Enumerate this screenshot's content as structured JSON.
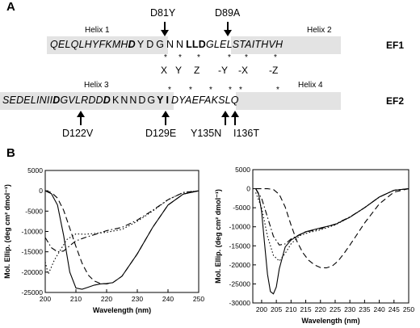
{
  "panelA": {
    "label": "A",
    "mutations_top": [
      "D81Y",
      "D89A"
    ],
    "helix1": "Helix 1",
    "helix2": "Helix 2",
    "helix3": "Helix 3",
    "helix4": "Helix 4",
    "seq1_a": "QELQLHYFKMH",
    "seq1_D81": "D",
    "seq1_b": "YDGNN",
    "seq1_LLD": "LLD",
    "seq1_c": "GLELSTAITHVH",
    "ef1": "EF1",
    "coords": [
      "X",
      "Y",
      "Z",
      "-Y",
      "-X",
      "-Z"
    ],
    "seq2_a": "SEDELINII",
    "seq2_D122": "D",
    "seq2_b": "GVLRDD",
    "seq2_D129": "D",
    "seq2_c": "KNNDG",
    "seq2_YI": "YI",
    "seq2_d": "DYAEFAKSLQ",
    "ef2": "EF2",
    "mutations_bottom": [
      "D122V",
      "D129E",
      "Y135N",
      "I136T"
    ]
  },
  "panelB": {
    "label": "B"
  },
  "chart_data": [
    {
      "type": "line",
      "xlabel": "Wavelength (nm)",
      "ylabel": "Mol. Ellip. (deg cm² dmol⁻¹)",
      "xlim": [
        200,
        250
      ],
      "ylim": [
        -25000,
        5000
      ],
      "xticks": [
        200,
        210,
        220,
        230,
        240,
        250
      ],
      "yticks": [
        5000,
        0,
        -5000,
        -10000,
        -15000,
        -20000,
        -25000
      ],
      "series": [
        {
          "style": "solid",
          "x": [
            200,
            202,
            204,
            206,
            208,
            210,
            212,
            214,
            216,
            218,
            220,
            222,
            225,
            230,
            235,
            240,
            245,
            250
          ],
          "y": [
            0,
            -700,
            -3500,
            -11000,
            -20000,
            -23900,
            -24200,
            -23700,
            -23200,
            -22900,
            -22800,
            -22600,
            -21000,
            -15500,
            -9000,
            -3500,
            -800,
            0
          ]
        },
        {
          "style": "dashed",
          "x": [
            200,
            202,
            204,
            206,
            208,
            210,
            212,
            214,
            216,
            218,
            220,
            222,
            225,
            230,
            235,
            240,
            245,
            250
          ],
          "y": [
            0,
            -400,
            -1800,
            -4800,
            -9200,
            -13700,
            -17800,
            -20700,
            -22200,
            -22800,
            -22900,
            -22600,
            -21000,
            -15500,
            -9000,
            -3500,
            -800,
            0
          ]
        },
        {
          "style": "dotted",
          "x": [
            200,
            201,
            203,
            205,
            207,
            210,
            213,
            216,
            220,
            225,
            230,
            235,
            240,
            245,
            250
          ],
          "y": [
            -17500,
            -20500,
            -17000,
            -14500,
            -12000,
            -10600,
            -10700,
            -10500,
            -10200,
            -9500,
            -7500,
            -5000,
            -2200,
            -400,
            0
          ]
        },
        {
          "style": "dash-dot",
          "x": [
            200,
            202,
            204,
            206,
            208,
            210,
            213,
            216,
            220,
            225,
            230,
            235,
            240,
            245,
            250
          ],
          "y": [
            -11500,
            -14000,
            -15000,
            -14800,
            -13500,
            -12300,
            -11500,
            -10800,
            -9800,
            -9000,
            -7200,
            -4800,
            -2200,
            -400,
            0
          ]
        }
      ]
    },
    {
      "type": "line",
      "xlabel": "Wavelength (nm)",
      "ylabel": "Mol. Ellip. (deg cm² dmol⁻¹)",
      "xlim": [
        197,
        250
      ],
      "ylim": [
        -30000,
        5000
      ],
      "xticks": [
        200,
        205,
        210,
        215,
        220,
        225,
        230,
        235,
        240,
        245,
        250
      ],
      "yticks": [
        5000,
        0,
        -5000,
        -10000,
        -15000,
        -20000,
        -25000,
        -30000
      ],
      "series": [
        {
          "style": "solid",
          "x": [
            198,
            199,
            200,
            201,
            202,
            203,
            204,
            205,
            206,
            208,
            210,
            212,
            215,
            220,
            225,
            230,
            235,
            240,
            245,
            250
          ],
          "y": [
            0,
            -1500,
            -6000,
            -14500,
            -22500,
            -27000,
            -27600,
            -25800,
            -21000,
            -15300,
            -13500,
            -12500,
            -11300,
            -10300,
            -9400,
            -7500,
            -5000,
            -2200,
            -400,
            0
          ]
        },
        {
          "style": "dashed",
          "x": [
            198,
            200,
            202,
            204,
            206,
            208,
            210,
            212,
            214,
            216,
            218,
            220,
            222,
            224,
            226,
            228,
            230,
            232,
            235,
            240,
            245,
            250
          ],
          "y": [
            0,
            0,
            0,
            -200,
            -1500,
            -4800,
            -9500,
            -13800,
            -16800,
            -18800,
            -20000,
            -20700,
            -20800,
            -20300,
            -19000,
            -17000,
            -14800,
            -12500,
            -9000,
            -4000,
            -900,
            0
          ]
        },
        {
          "style": "dotted",
          "x": [
            198,
            200,
            202,
            204,
            206,
            208,
            210,
            213,
            216,
            220,
            225,
            230,
            235,
            240,
            245,
            250
          ],
          "y": [
            -1000,
            -5000,
            -12500,
            -17500,
            -19000,
            -17000,
            -14500,
            -12300,
            -11500,
            -10800,
            -9500,
            -7500,
            -5000,
            -2200,
            -400,
            0
          ]
        },
        {
          "style": "dash-dot",
          "x": [
            198,
            200,
            202,
            204,
            206,
            208,
            210,
            213,
            216,
            220,
            225,
            230,
            235,
            240,
            245,
            250
          ],
          "y": [
            0,
            -2500,
            -7500,
            -12500,
            -14800,
            -14500,
            -13200,
            -12000,
            -11200,
            -10500,
            -9300,
            -7400,
            -5000,
            -2200,
            -400,
            0
          ]
        }
      ]
    }
  ]
}
